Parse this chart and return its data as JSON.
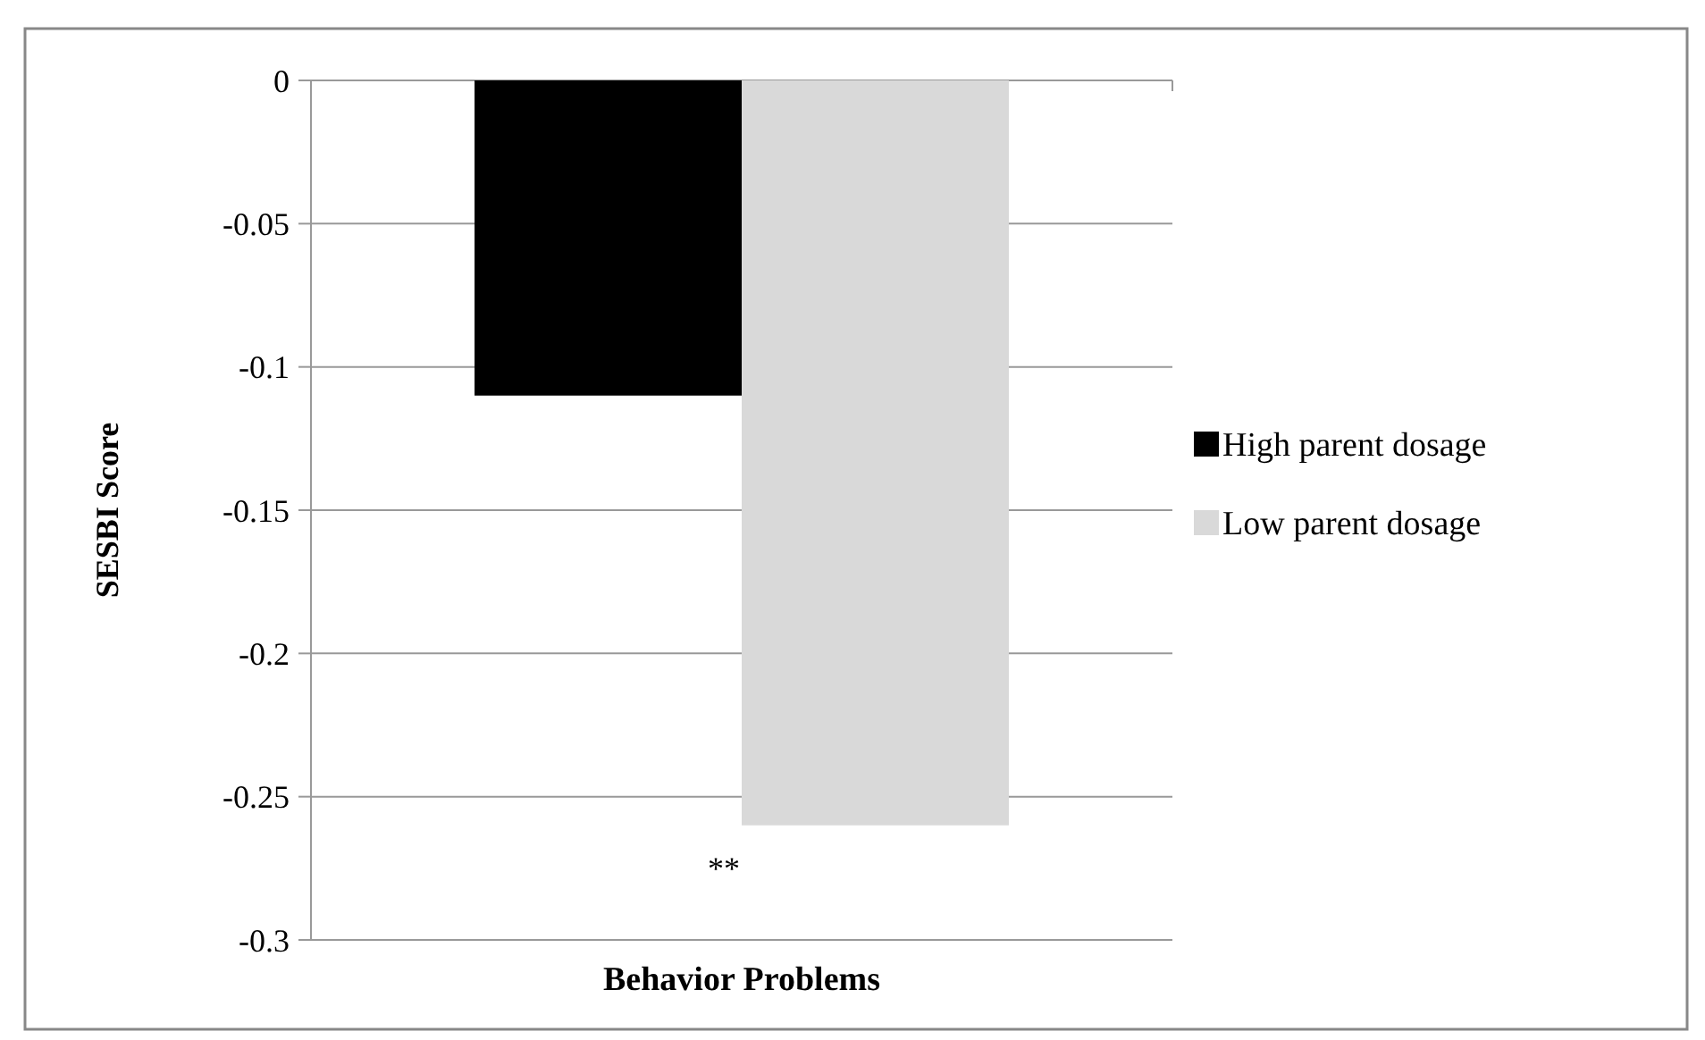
{
  "chart_data": {
    "type": "bar",
    "ylabel": "SESBI Score",
    "categories": [
      "Behavior Problems"
    ],
    "series": [
      {
        "name": "High parent dosage",
        "color": "#000000",
        "values": [
          -0.11
        ]
      },
      {
        "name": "Low parent dosage",
        "color": "#d9d9d9",
        "values": [
          -0.26
        ]
      }
    ],
    "ylim": [
      -0.3,
      0
    ],
    "yticks": [
      -0.3,
      -0.25,
      -0.2,
      -0.15,
      -0.1,
      -0.05,
      0
    ],
    "grid": "y",
    "legend": "right",
    "annotations": [
      "**"
    ]
  }
}
